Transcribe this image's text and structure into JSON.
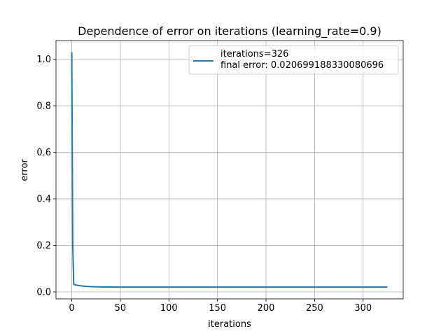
{
  "chart_data": {
    "type": "line",
    "title": "Dependence of error on iterations (learning_rate=0.9)",
    "xlabel": "iterations",
    "ylabel": "error",
    "xlim": [
      -16.25,
      341.25
    ],
    "ylim": [
      -0.03,
      1.08
    ],
    "x_ticks": [
      0,
      50,
      100,
      150,
      200,
      250,
      300
    ],
    "y_ticks": [
      0.0,
      0.2,
      0.4,
      0.6,
      0.8,
      1.0
    ],
    "x_tick_labels": [
      "0",
      "50",
      "100",
      "150",
      "200",
      "250",
      "300"
    ],
    "y_tick_labels": [
      "0.0",
      "0.2",
      "0.4",
      "0.6",
      "0.8",
      "1.0"
    ],
    "grid": true,
    "legend": {
      "placement": "top-right",
      "lines": [
        "iterations=326",
        "final error: 0.020699188330080696"
      ]
    },
    "series": [
      {
        "color": "#1f77b4",
        "points": [
          [
            0,
            1.03
          ],
          [
            1,
            0.2
          ],
          [
            2,
            0.033
          ],
          [
            3,
            0.031
          ],
          [
            5,
            0.029
          ],
          [
            8,
            0.027
          ],
          [
            12,
            0.025
          ],
          [
            16,
            0.0235
          ],
          [
            20,
            0.0225
          ],
          [
            25,
            0.0218
          ],
          [
            30,
            0.0214
          ],
          [
            40,
            0.021
          ],
          [
            50,
            0.0209
          ],
          [
            75,
            0.0208
          ],
          [
            100,
            0.0207
          ],
          [
            150,
            0.0207
          ],
          [
            200,
            0.0207
          ],
          [
            250,
            0.0207
          ],
          [
            300,
            0.0207
          ],
          [
            325,
            0.020699188330080696
          ]
        ]
      }
    ]
  }
}
